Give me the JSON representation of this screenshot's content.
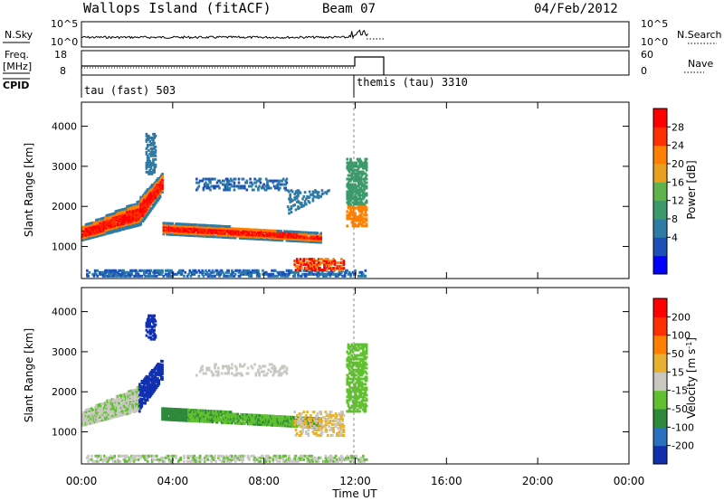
{
  "header": {
    "site": "Wallops Island (fitACF)",
    "beam": "Beam 07",
    "date": "04/Feb/2012"
  },
  "nsky_panel": {
    "label": "N.Sky",
    "left_ticks": [
      "10^5",
      "10^0"
    ],
    "right_ticks": [
      "10^5",
      "10^0"
    ],
    "right_label": "N.Search"
  },
  "freq_panel": {
    "label_line1": "Freq.",
    "label_line2": "[MHz]",
    "left_ticks": [
      "18",
      "8"
    ],
    "right_ticks": [
      "60",
      "0"
    ],
    "right_label": "Nave",
    "cpid_label": "CPID",
    "mode1": "tau (fast) 503",
    "mode2": "themis (tau) 3310"
  },
  "chart_data": [
    {
      "type": "heatmap",
      "name_key": "power",
      "ylabel": "Slant Range [km]",
      "y_ticks": [
        1000,
        2000,
        3000,
        4000
      ],
      "ylim": [
        200,
        4600
      ],
      "x_ticks": [
        "00:00",
        "04:00",
        "08:00",
        "12:00",
        "16:00",
        "20:00",
        "00:00"
      ],
      "xlim_hours": [
        0,
        24
      ],
      "colorbar": {
        "label": "Power [dB]",
        "ticks": [
          "28",
          "24",
          "20",
          "16",
          "12",
          "8",
          "4"
        ],
        "colors": [
          "#0000ff",
          "#1c4fb8",
          "#2e7ba5",
          "#3a9a6a",
          "#5fb34a",
          "#e8a020",
          "#ff8000",
          "#ff3000",
          "#ff0000"
        ]
      }
    },
    {
      "type": "heatmap",
      "name_key": "velocity",
      "ylabel": "Slant Range [km]",
      "y_ticks": [
        1000,
        2000,
        3000,
        4000
      ],
      "ylim": [
        200,
        4600
      ],
      "x_ticks": [
        "00:00",
        "04:00",
        "08:00",
        "12:00",
        "16:00",
        "20:00",
        "00:00"
      ],
      "xlim_hours": [
        0,
        24
      ],
      "xlabel": "Time UT",
      "colorbar": {
        "label": "Velocity [m s",
        "label_sup": "-1",
        "label_close": "]",
        "ticks": [
          "200",
          "100",
          "50",
          "15",
          "-15",
          "-50",
          "-100",
          "-200"
        ],
        "colors": [
          "#1030b0",
          "#2a70c0",
          "#2e8a3a",
          "#60c030",
          "#c8c8c0",
          "#e8b030",
          "#ff8000",
          "#ff3000",
          "#ff0000"
        ]
      }
    }
  ]
}
